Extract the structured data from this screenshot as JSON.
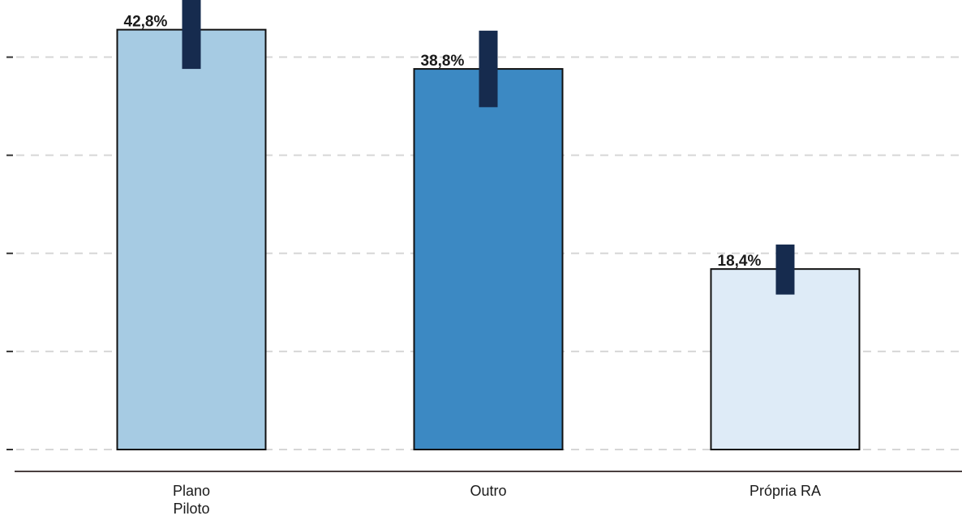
{
  "chart_data": {
    "type": "bar",
    "categories": [
      [
        "Plano",
        "Piloto"
      ],
      [
        "Outro"
      ],
      [
        "Própria RA"
      ]
    ],
    "values": [
      42.8,
      38.8,
      18.4
    ],
    "value_labels": [
      "42,8%",
      "38,8%",
      "18,4%"
    ],
    "error_low": [
      38.8,
      34.9,
      15.8
    ],
    "error_high": [
      46.8,
      42.7,
      20.9
    ],
    "bar_colors": [
      "#a6cbe3",
      "#3c89c3",
      "#deebf7"
    ],
    "error_color": "#162b4e",
    "ylim": [
      0,
      45
    ],
    "grid": true,
    "title": "",
    "xlabel": "",
    "ylabel": ""
  }
}
